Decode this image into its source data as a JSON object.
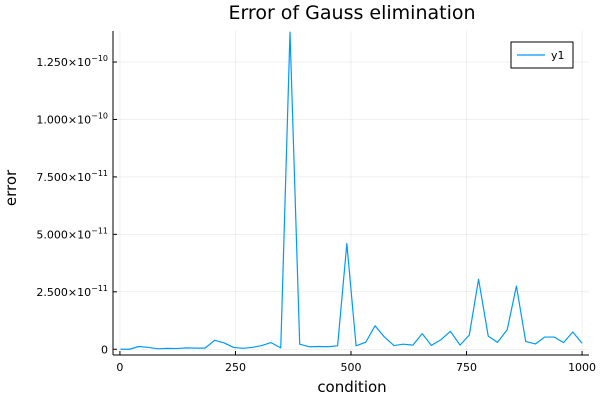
{
  "chart_data": {
    "type": "line",
    "title": "Error of Gauss elimination",
    "xlabel": "condition",
    "ylabel": "error",
    "xlim": [
      -15,
      1015
    ],
    "ylim": [
      -2.5e-12,
      1.385e-10
    ],
    "x_ticks": [
      {
        "value": 0,
        "label": "0"
      },
      {
        "value": 250,
        "label": "250"
      },
      {
        "value": 500,
        "label": "500"
      },
      {
        "value": 750,
        "label": "750"
      },
      {
        "value": 1000,
        "label": "1000"
      }
    ],
    "y_ticks": [
      {
        "value": 0,
        "base": "0",
        "exp": ""
      },
      {
        "value": 2.5e-11,
        "base": "2.500×10",
        "exp": "−11"
      },
      {
        "value": 5e-11,
        "base": "5.000×10",
        "exp": "−11"
      },
      {
        "value": 7.5e-11,
        "base": "7.500×10",
        "exp": "−11"
      },
      {
        "value": 1e-10,
        "base": "1.000×10",
        "exp": "−10"
      },
      {
        "value": 1.25e-10,
        "base": "1.250×10",
        "exp": "−10"
      }
    ],
    "grid": true,
    "legend_position": "top-right",
    "series": [
      {
        "name": "y1",
        "color": "#009AFA",
        "x": [
          1,
          21,
          41,
          62,
          82,
          102,
          123,
          143,
          164,
          184,
          205,
          225,
          246,
          266,
          286,
          307,
          327,
          348,
          368,
          389,
          409,
          430,
          450,
          471,
          491,
          511,
          532,
          552,
          572,
          593,
          613,
          634,
          654,
          674,
          695,
          715,
          736,
          756,
          776,
          797,
          817,
          838,
          858,
          878,
          899,
          919,
          940,
          960,
          980,
          1000
        ],
        "y": [
          0,
          0,
          1.2e-12,
          8e-13,
          2e-13,
          4e-13,
          3e-13,
          6e-13,
          5e-13,
          5e-13,
          3.9e-12,
          2.8e-12,
          8e-13,
          4e-13,
          8e-13,
          1.6e-12,
          2.9e-12,
          6e-13,
          1.38e-10,
          2.2e-12,
          1.1e-12,
          1.2e-12,
          1.1e-12,
          1.5e-12,
          4.6e-11,
          1.5e-12,
          3.1e-12,
          1.02e-11,
          5.4e-12,
          1.6e-12,
          2.2e-12,
          1.8e-12,
          6.8e-12,
          1.7e-12,
          4.2e-12,
          7.8e-12,
          1.8e-12,
          6.2e-12,
          3.05e-11,
          5.7e-12,
          3e-12,
          8.5e-12,
          2.75e-11,
          3.4e-12,
          2.3e-12,
          5.3e-12,
          5.3e-12,
          2.9e-12,
          7.5e-12,
          2.6e-12
        ]
      }
    ]
  }
}
